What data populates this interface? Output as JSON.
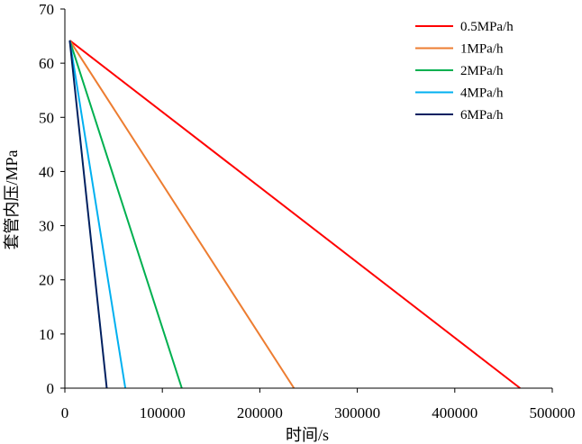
{
  "chart_data": {
    "type": "line",
    "title": "",
    "xlabel": "时间/s",
    "ylabel": "套管内压/MPa",
    "xlim": [
      0,
      500000
    ],
    "ylim": [
      0,
      70
    ],
    "x_ticks": [
      0,
      100000,
      200000,
      300000,
      400000,
      500000
    ],
    "y_ticks": [
      0,
      10,
      20,
      30,
      40,
      50,
      60,
      70
    ],
    "x_tick_labels": [
      "0",
      "100000",
      "200000",
      "300000",
      "400000",
      "500000"
    ],
    "y_tick_labels": [
      "0",
      "10",
      "20",
      "30",
      "40",
      "50",
      "60",
      "70"
    ],
    "grid": false,
    "legend_position": "top-right",
    "series": [
      {
        "name": "0.5MPa/h",
        "color": "#ff0000",
        "x": [
          5000,
          467000
        ],
        "y": [
          64.2,
          0
        ]
      },
      {
        "name": "1MPa/h",
        "color": "#ed7d31",
        "x": [
          5000,
          235000
        ],
        "y": [
          64.2,
          0
        ]
      },
      {
        "name": "2MPa/h",
        "color": "#00b050",
        "x": [
          5000,
          120000
        ],
        "y": [
          64.2,
          0
        ]
      },
      {
        "name": "4MPa/h",
        "color": "#00b0f0",
        "x": [
          5000,
          62000
        ],
        "y": [
          64.2,
          0
        ]
      },
      {
        "name": "6MPa/h",
        "color": "#002060",
        "x": [
          5000,
          43000
        ],
        "y": [
          64.2,
          0
        ]
      }
    ]
  }
}
